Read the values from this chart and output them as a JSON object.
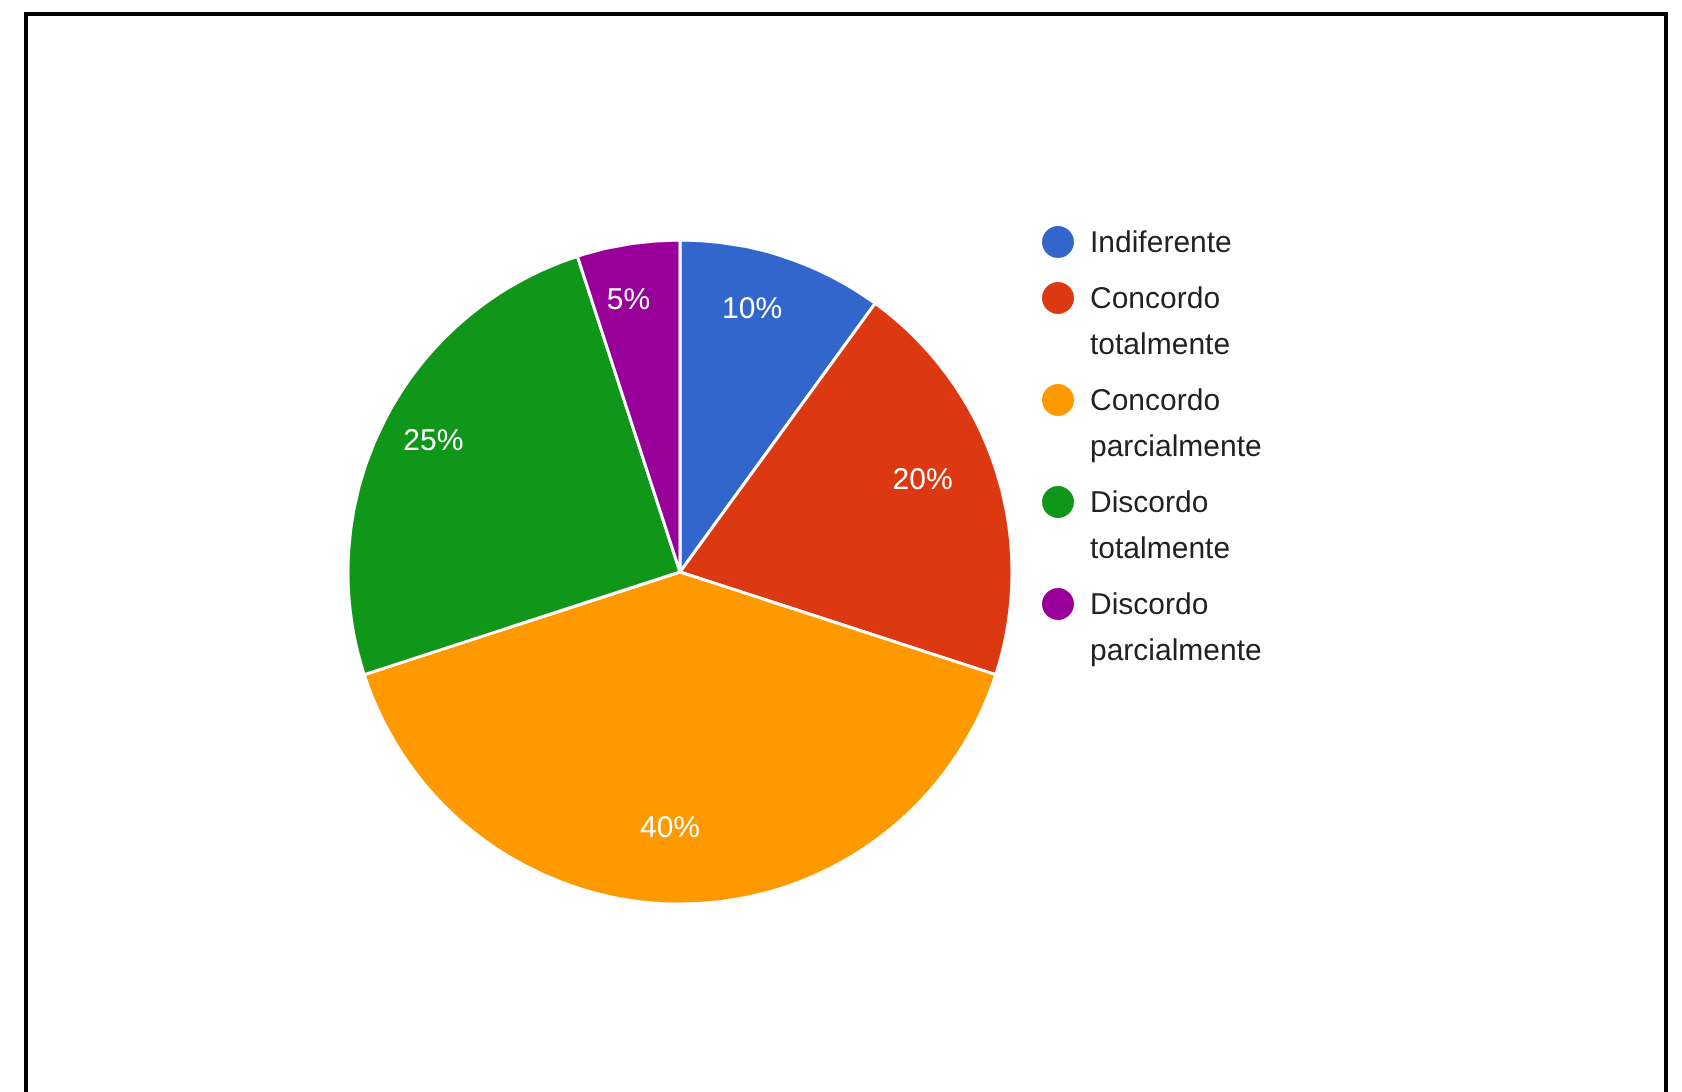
{
  "chart_data": {
    "type": "pie",
    "categories": [
      "Indiferente",
      "Concordo totalmente",
      "Concordo parcialmente",
      "Discordo totalmente",
      "Discordo parcialmente"
    ],
    "values": [
      10,
      20,
      40,
      25,
      5
    ],
    "colors": [
      "#3366cc",
      "#dc3912",
      "#ff9900",
      "#109618",
      "#990099"
    ],
    "value_labels": [
      "10%",
      "20%",
      "40%",
      "25%",
      "5%"
    ],
    "legend": "right"
  }
}
